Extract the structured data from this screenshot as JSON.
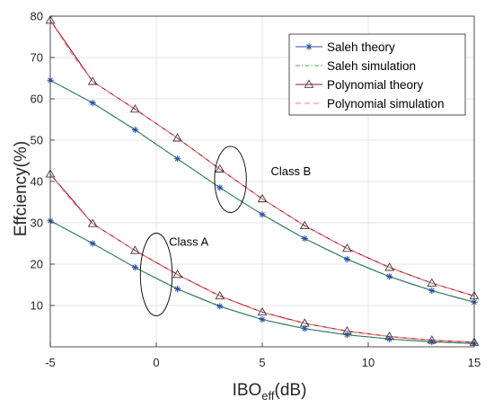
{
  "chart_data": {
    "type": "line",
    "xlabel": "IBO",
    "xlabel_sub": "eff",
    "xlabel_unit": "(dB)",
    "ylabel": "Effciency(%)",
    "xlim": [
      -5,
      15
    ],
    "ylim": [
      0,
      80
    ],
    "xticks": [
      "-5",
      "0",
      "5",
      "10",
      "15"
    ],
    "yticks": [
      "10",
      "20",
      "30",
      "40",
      "50",
      "60",
      "70",
      "80"
    ],
    "grid": true,
    "legend_position": "top-right",
    "colors": {
      "saleh_theory": "#2b4fa8",
      "saleh_sim": "#4aa64a",
      "poly_theory": "#8b1a2b",
      "poly_sim": "#ff7f7f",
      "grid": "#dedede",
      "axis": "#262626"
    },
    "x_markers": [
      -5,
      -3,
      -1,
      1,
      3,
      5,
      7,
      9,
      11,
      13,
      15
    ],
    "x_dense": [
      -5,
      -4,
      -3,
      -2,
      -1,
      0,
      1,
      2,
      3,
      4,
      5,
      6,
      7,
      8,
      9,
      10,
      11,
      12,
      13,
      14,
      15
    ],
    "series": [
      {
        "name": "Saleh theory",
        "key": "saleh_theory",
        "style": "solid",
        "marker": "asterisk",
        "x": [
          -5,
          -3,
          -1,
          1,
          3,
          5,
          7,
          9,
          11,
          13,
          15
        ],
        "class_b": [
          64.5,
          59.0,
          52.5,
          45.5,
          38.5,
          32.0,
          26.2,
          21.2,
          17.0,
          13.6,
          10.8
        ],
        "class_a": [
          30.5,
          25.0,
          19.2,
          14.0,
          9.8,
          6.6,
          4.4,
          2.9,
          1.9,
          1.2,
          0.8
        ]
      },
      {
        "name": "Saleh simulation",
        "key": "saleh_sim",
        "style": "dashdot",
        "marker": "none",
        "x": [
          -5,
          -4,
          -3,
          -2,
          -1,
          0,
          1,
          2,
          3,
          4,
          5,
          6,
          7,
          8,
          9,
          10,
          11,
          12,
          13,
          14,
          15
        ],
        "class_b": [
          64.5,
          61.8,
          59.0,
          55.8,
          52.5,
          49.0,
          45.5,
          42.0,
          38.5,
          35.2,
          32.0,
          29.0,
          26.2,
          23.6,
          21.2,
          19.0,
          17.0,
          15.2,
          13.6,
          12.1,
          10.8
        ],
        "class_a": [
          30.5,
          27.8,
          25.0,
          22.1,
          19.2,
          16.5,
          14.0,
          11.8,
          9.8,
          8.1,
          6.6,
          5.4,
          4.4,
          3.6,
          2.9,
          2.4,
          1.9,
          1.5,
          1.2,
          1.0,
          0.8
        ]
      },
      {
        "name": "Polynomial  theory",
        "key": "poly_theory",
        "style": "solid",
        "marker": "triangle",
        "x": [
          -5,
          -3,
          -1,
          1,
          3,
          5,
          7,
          9,
          11,
          13,
          15
        ],
        "class_b": [
          79.0,
          64.2,
          57.5,
          50.5,
          43.0,
          35.8,
          29.3,
          23.8,
          19.2,
          15.4,
          12.3
        ],
        "class_a": [
          41.8,
          29.8,
          23.3,
          17.5,
          12.3,
          8.4,
          5.7,
          3.8,
          2.5,
          1.6,
          1.1
        ]
      },
      {
        "name": "Polynomial simulation",
        "key": "poly_sim",
        "style": "dashed",
        "marker": "none",
        "x": [
          -5,
          -4,
          -3,
          -2,
          -1,
          0,
          1,
          2,
          3,
          4,
          5,
          6,
          7,
          8,
          9,
          10,
          11,
          12,
          13,
          14,
          15
        ],
        "class_b": [
          79.0,
          71.0,
          64.2,
          60.8,
          57.5,
          54.0,
          50.5,
          46.7,
          43.0,
          39.4,
          35.8,
          32.5,
          29.3,
          26.5,
          23.8,
          21.4,
          19.2,
          17.2,
          15.4,
          13.8,
          12.3
        ],
        "class_a": [
          41.8,
          35.4,
          29.8,
          26.5,
          23.3,
          20.3,
          17.5,
          14.8,
          12.3,
          10.2,
          8.4,
          6.9,
          5.7,
          4.7,
          3.8,
          3.1,
          2.5,
          2.0,
          1.6,
          1.3,
          1.1
        ]
      }
    ],
    "annotations": [
      {
        "text": "Class B",
        "x": 5.4,
        "y": 41.5,
        "ellipse_cx": 3.5,
        "ellipse_cy": 40.5,
        "ellipse_rx": 0.75,
        "ellipse_ry": 8
      },
      {
        "text": "Class A",
        "x": 0.6,
        "y": 24.5,
        "ellipse_cx": 0,
        "ellipse_cy": 17.5,
        "ellipse_rx": 0.75,
        "ellipse_ry": 10
      }
    ]
  }
}
